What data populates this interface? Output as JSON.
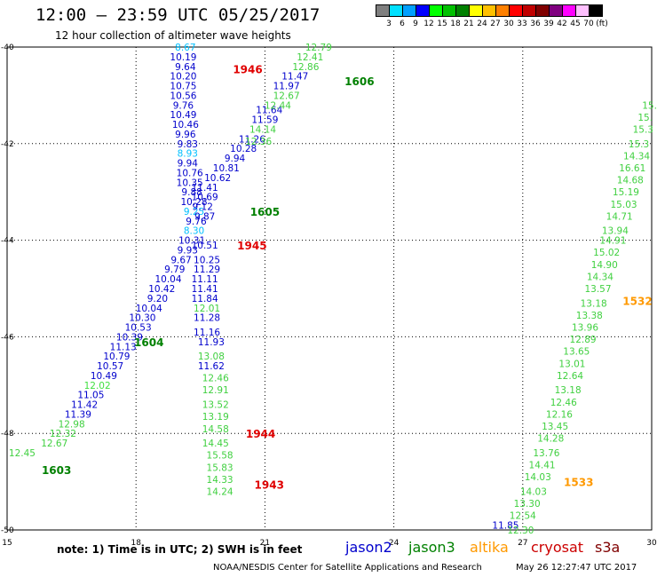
{
  "header": {
    "title": "12:00 – 23:59 UTC 05/25/2017",
    "subtitle": "12 hour collection of altimeter wave heights"
  },
  "colorbar": {
    "colors": [
      "#7f7f7f",
      "#00e0ff",
      "#00a0ff",
      "#0000ff",
      "#00ff00",
      "#00c000",
      "#008000",
      "#ffff00",
      "#ffc000",
      "#ff8000",
      "#ff0000",
      "#c00000",
      "#800000",
      "#800080",
      "#ff00ff",
      "#ffc0ff",
      "#000000"
    ],
    "labels": [
      "3",
      "6",
      "9",
      "12",
      "15",
      "18",
      "21",
      "24",
      "27",
      "30",
      "33",
      "36",
      "39",
      "42",
      "45",
      "70",
      "(ft)"
    ]
  },
  "footer": {
    "note": "note: 1) Time is in UTC; 2) SWH is in feet",
    "legend": [
      {
        "label": "jason2",
        "color": "#0000cc"
      },
      {
        "label": "jason3",
        "color": "#008000"
      },
      {
        "label": "altika",
        "color": "#ff9900"
      },
      {
        "label": "cryosat",
        "color": "#cc0000"
      },
      {
        "label": "s3a",
        "color": "#800000"
      }
    ],
    "credit": "NOAA/NESDIS Center for Satellite Applications and Research",
    "timestamp": "May 26 12:27:47 UTC 2017"
  },
  "chart_data": {
    "type": "scatter",
    "x_range": [
      15,
      30
    ],
    "y_range": [
      -50,
      -40
    ],
    "x_ticks": [
      "15",
      "18",
      "21",
      "24",
      "27",
      "30"
    ],
    "y_ticks": [
      "-40",
      "-42",
      "-44",
      "-46",
      "-48",
      "-50"
    ],
    "grid": true,
    "pass_labels": [
      {
        "text": "1946",
        "x": 20.6,
        "y": -40.45,
        "color": "#e00000"
      },
      {
        "text": "1606",
        "x": 23.2,
        "y": -40.7,
        "color": "#008000"
      },
      {
        "text": "1605",
        "x": 21.0,
        "y": -43.4,
        "color": "#008000"
      },
      {
        "text": "1945",
        "x": 20.7,
        "y": -44.1,
        "color": "#e00000"
      },
      {
        "text": "1604",
        "x": 18.3,
        "y": -46.1,
        "color": "#008000"
      },
      {
        "text": "1944",
        "x": 20.9,
        "y": -48.0,
        "color": "#e00000"
      },
      {
        "text": "1603",
        "x": 16.15,
        "y": -48.75,
        "color": "#008000"
      },
      {
        "text": "1943",
        "x": 21.1,
        "y": -49.05,
        "color": "#e00000"
      },
      {
        "text": "1532",
        "x": 30.05,
        "y": -45.25,
        "color": "#ff9900"
      },
      {
        "text": "1533",
        "x": 28.3,
        "y": -49.0,
        "color": "#ff9900"
      }
    ],
    "series": [
      {
        "name": "jason2",
        "color": "#0000cc",
        "points": [
          {
            "x": 19.15,
            "y": -40.0,
            "v": "8.67",
            "c": "#00c0ff"
          },
          {
            "x": 19.1,
            "y": -40.2,
            "v": "10.19"
          },
          {
            "x": 19.15,
            "y": -40.4,
            "v": "9.64"
          },
          {
            "x": 19.1,
            "y": -40.6,
            "v": "10.20"
          },
          {
            "x": 19.1,
            "y": -40.8,
            "v": "10.75"
          },
          {
            "x": 19.1,
            "y": -41.0,
            "v": "10.56"
          },
          {
            "x": 19.1,
            "y": -41.2,
            "v": "9.76"
          },
          {
            "x": 19.1,
            "y": -41.4,
            "v": "10.49"
          },
          {
            "x": 19.15,
            "y": -41.6,
            "v": "10.46"
          },
          {
            "x": 19.15,
            "y": -41.8,
            "v": "9.96"
          },
          {
            "x": 19.2,
            "y": -42.0,
            "v": "9.83"
          },
          {
            "x": 19.2,
            "y": -42.2,
            "v": "8.93",
            "c": "#00c0ff"
          },
          {
            "x": 19.2,
            "y": -42.4,
            "v": "9.94"
          },
          {
            "x": 19.25,
            "y": -42.6,
            "v": "10.76"
          },
          {
            "x": 19.25,
            "y": -42.8,
            "v": "10.35"
          },
          {
            "x": 19.3,
            "y": -43.0,
            "v": "9.88"
          },
          {
            "x": 19.35,
            "y": -43.2,
            "v": "10.28"
          },
          {
            "x": 19.35,
            "y": -43.4,
            "v": "9.25",
            "c": "#00c0ff"
          },
          {
            "x": 19.4,
            "y": -43.6,
            "v": "9.76"
          },
          {
            "x": 19.35,
            "y": -43.8,
            "v": "8.30",
            "c": "#00c0ff"
          },
          {
            "x": 19.3,
            "y": -44.0,
            "v": "10.31"
          },
          {
            "x": 19.2,
            "y": -44.2,
            "v": "9.93"
          },
          {
            "x": 19.05,
            "y": -44.4,
            "v": "9.67"
          },
          {
            "x": 18.9,
            "y": -44.6,
            "v": "9.79"
          },
          {
            "x": 18.75,
            "y": -44.8,
            "v": "10.04"
          },
          {
            "x": 18.6,
            "y": -45.0,
            "v": "10.42"
          },
          {
            "x": 18.5,
            "y": -45.2,
            "v": "9.20"
          },
          {
            "x": 18.3,
            "y": -45.4,
            "v": "10.04"
          },
          {
            "x": 18.15,
            "y": -45.6,
            "v": "10.30"
          },
          {
            "x": 18.05,
            "y": -45.8,
            "v": "10.53"
          },
          {
            "x": 17.85,
            "y": -46.0,
            "v": "10.39"
          },
          {
            "x": 17.7,
            "y": -46.2,
            "v": "11.13"
          },
          {
            "x": 17.55,
            "y": -46.4,
            "v": "10.79"
          },
          {
            "x": 17.4,
            "y": -46.6,
            "v": "10.57"
          },
          {
            "x": 17.25,
            "y": -46.8,
            "v": "10.49"
          },
          {
            "x": 17.1,
            "y": -47.0,
            "v": "12.02",
            "c": "#40e040"
          },
          {
            "x": 16.95,
            "y": -47.2,
            "v": "11.05"
          },
          {
            "x": 16.8,
            "y": -47.4,
            "v": "11.42"
          },
          {
            "x": 16.65,
            "y": -47.6,
            "v": "11.39"
          },
          {
            "x": 19.6,
            "y": -42.9,
            "v": "11.41"
          },
          {
            "x": 19.9,
            "y": -42.7,
            "v": "10.62"
          },
          {
            "x": 20.1,
            "y": -42.5,
            "v": "10.81"
          },
          {
            "x": 20.3,
            "y": -42.3,
            "v": "9.94"
          },
          {
            "x": 20.5,
            "y": -42.1,
            "v": "10.28"
          },
          {
            "x": 20.7,
            "y": -41.9,
            "v": "11.26"
          },
          {
            "x": 19.6,
            "y": -43.1,
            "v": "10.69"
          },
          {
            "x": 19.55,
            "y": -43.3,
            "v": "9.12"
          },
          {
            "x": 19.6,
            "y": -43.5,
            "v": "9.87"
          },
          {
            "x": 19.6,
            "y": -44.1,
            "v": "10.51"
          },
          {
            "x": 19.65,
            "y": -44.4,
            "v": "10.25"
          },
          {
            "x": 19.65,
            "y": -44.6,
            "v": "11.29"
          },
          {
            "x": 19.6,
            "y": -44.8,
            "v": "11.11"
          },
          {
            "x": 19.6,
            "y": -45.0,
            "v": "11.41"
          },
          {
            "x": 19.6,
            "y": -45.2,
            "v": "11.84"
          },
          {
            "x": 19.65,
            "y": -45.6,
            "v": "11.28"
          },
          {
            "x": 19.65,
            "y": -45.9,
            "v": "11.16"
          },
          {
            "x": 19.75,
            "y": -46.1,
            "v": "11.93"
          },
          {
            "x": 19.75,
            "y": -46.6,
            "v": "11.62"
          },
          {
            "x": 21.0,
            "y": -41.5,
            "v": "11.59"
          },
          {
            "x": 21.1,
            "y": -41.3,
            "v": "11.64"
          },
          {
            "x": 21.5,
            "y": -40.8,
            "v": "11.97"
          },
          {
            "x": 21.7,
            "y": -40.6,
            "v": "11.47"
          },
          {
            "x": 26.6,
            "y": -49.9,
            "v": "11.85"
          }
        ]
      },
      {
        "name": "jason3",
        "color": "#40d040",
        "points": [
          {
            "x": 22.25,
            "y": -40.0,
            "v": "12.79"
          },
          {
            "x": 22.05,
            "y": -40.2,
            "v": "12.41"
          },
          {
            "x": 21.95,
            "y": -40.4,
            "v": "12.86"
          },
          {
            "x": 21.5,
            "y": -41.0,
            "v": "12.67"
          },
          {
            "x": 21.3,
            "y": -41.2,
            "v": "12.44"
          },
          {
            "x": 20.95,
            "y": -41.7,
            "v": "14.14"
          },
          {
            "x": 20.85,
            "y": -41.95,
            "v": "12.36"
          },
          {
            "x": 16.5,
            "y": -47.8,
            "v": "12.98"
          },
          {
            "x": 16.3,
            "y": -48.0,
            "v": "12.32"
          },
          {
            "x": 16.1,
            "y": -48.2,
            "v": "12.67"
          },
          {
            "x": 15.35,
            "y": -48.4,
            "v": "12.45"
          },
          {
            "x": 19.65,
            "y": -45.4,
            "v": "12.01"
          },
          {
            "x": 19.75,
            "y": -46.4,
            "v": "13.08"
          },
          {
            "x": 19.85,
            "y": -46.85,
            "v": "12.46"
          },
          {
            "x": 19.85,
            "y": -47.1,
            "v": "12.91"
          },
          {
            "x": 19.85,
            "y": -47.4,
            "v": "13.52"
          },
          {
            "x": 19.85,
            "y": -47.65,
            "v": "13.19"
          },
          {
            "x": 19.85,
            "y": -47.9,
            "v": "14.58"
          },
          {
            "x": 19.85,
            "y": -48.2,
            "v": "14.45"
          },
          {
            "x": 19.95,
            "y": -48.45,
            "v": "15.58"
          },
          {
            "x": 19.95,
            "y": -48.7,
            "v": "15.83"
          },
          {
            "x": 19.95,
            "y": -48.95,
            "v": "14.33"
          },
          {
            "x": 19.95,
            "y": -49.2,
            "v": "14.24"
          },
          {
            "x": 29.95,
            "y": -41.2,
            "v": "15.",
            "c": "#40d040"
          },
          {
            "x": 29.85,
            "y": -41.45,
            "v": "15."
          },
          {
            "x": 29.8,
            "y": -41.7,
            "v": "15.3"
          },
          {
            "x": 29.7,
            "y": -42.0,
            "v": "15.3"
          },
          {
            "x": 29.65,
            "y": -42.25,
            "v": "14.34"
          },
          {
            "x": 29.55,
            "y": -42.5,
            "v": "16.61"
          },
          {
            "x": 29.5,
            "y": -42.75,
            "v": "14.68"
          },
          {
            "x": 29.4,
            "y": -43.0,
            "v": "15.19"
          },
          {
            "x": 29.35,
            "y": -43.25,
            "v": "15.03"
          },
          {
            "x": 29.25,
            "y": -43.5,
            "v": "14.71"
          },
          {
            "x": 29.15,
            "y": -43.8,
            "v": "13.94"
          },
          {
            "x": 29.1,
            "y": -44.0,
            "v": "14.91"
          },
          {
            "x": 28.95,
            "y": -44.25,
            "v": "15.02"
          },
          {
            "x": 28.9,
            "y": -44.5,
            "v": "14.90"
          },
          {
            "x": 28.8,
            "y": -44.75,
            "v": "14.34"
          },
          {
            "x": 28.75,
            "y": -45.0,
            "v": "13.57"
          },
          {
            "x": 28.65,
            "y": -45.3,
            "v": "13.18"
          },
          {
            "x": 28.55,
            "y": -45.55,
            "v": "13.38"
          },
          {
            "x": 28.45,
            "y": -45.8,
            "v": "13.96"
          },
          {
            "x": 28.4,
            "y": -46.05,
            "v": "12.89"
          },
          {
            "x": 28.25,
            "y": -46.3,
            "v": "13.65"
          },
          {
            "x": 28.15,
            "y": -46.55,
            "v": "13.01"
          },
          {
            "x": 28.1,
            "y": -46.8,
            "v": "12.64"
          },
          {
            "x": 28.05,
            "y": -47.1,
            "v": "13.18"
          },
          {
            "x": 27.95,
            "y": -47.35,
            "v": "12.46"
          },
          {
            "x": 27.85,
            "y": -47.6,
            "v": "12.16"
          },
          {
            "x": 27.75,
            "y": -47.85,
            "v": "13.45"
          },
          {
            "x": 27.65,
            "y": -48.1,
            "v": "14.28"
          },
          {
            "x": 27.55,
            "y": -48.4,
            "v": "13.76"
          },
          {
            "x": 27.45,
            "y": -48.65,
            "v": "14.41"
          },
          {
            "x": 27.35,
            "y": -48.9,
            "v": "14.03"
          },
          {
            "x": 27.25,
            "y": -49.2,
            "v": "14.03"
          },
          {
            "x": 27.1,
            "y": -49.45,
            "v": "13.30"
          },
          {
            "x": 27.0,
            "y": -49.7,
            "v": "12.54"
          },
          {
            "x": 26.95,
            "y": -50.0,
            "v": "12.30"
          }
        ]
      }
    ]
  }
}
